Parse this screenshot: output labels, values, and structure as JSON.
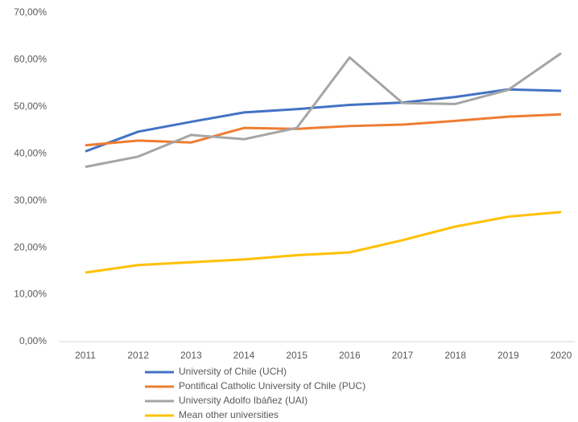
{
  "chart_data": {
    "type": "line",
    "categories": [
      "2011",
      "2012",
      "2013",
      "2014",
      "2015",
      "2016",
      "2017",
      "2018",
      "2019",
      "2020"
    ],
    "series": [
      {
        "name": "University of Chile (UCH)",
        "color": "#4472c4",
        "values": [
          40.5,
          44.7,
          46.8,
          48.8,
          49.5,
          50.4,
          50.9,
          52.1,
          53.7,
          53.4
        ]
      },
      {
        "name": "Pontifical Catholic University of Chile (PUC)",
        "color": "#ed7d31",
        "values": [
          41.8,
          42.8,
          42.4,
          45.5,
          45.3,
          45.9,
          46.2,
          47.0,
          47.9,
          48.4
        ]
      },
      {
        "name": "University Adolfo Ibáñez (UAI)",
        "color": "#a5a5a5",
        "values": [
          37.2,
          39.4,
          44.0,
          43.1,
          45.5,
          60.5,
          50.8,
          50.6,
          53.6,
          61.4
        ]
      },
      {
        "name": "Mean other universities",
        "color": "#ffc000",
        "values": [
          14.7,
          16.3,
          16.9,
          17.5,
          18.4,
          19.0,
          21.6,
          24.5,
          26.6,
          27.6
        ]
      }
    ],
    "ylim": [
      0,
      70
    ],
    "yticks": [
      {
        "value": 0,
        "label": "0,00%"
      },
      {
        "value": 10,
        "label": "10,00%"
      },
      {
        "value": 20,
        "label": "20,00%"
      },
      {
        "value": 30,
        "label": "30,00%"
      },
      {
        "value": 40,
        "label": "40,00%"
      },
      {
        "value": 50,
        "label": "50,00%"
      },
      {
        "value": 60,
        "label": "60,00%"
      },
      {
        "value": 70,
        "label": "70,00%"
      }
    ],
    "grid": false,
    "legend": "bottom"
  }
}
